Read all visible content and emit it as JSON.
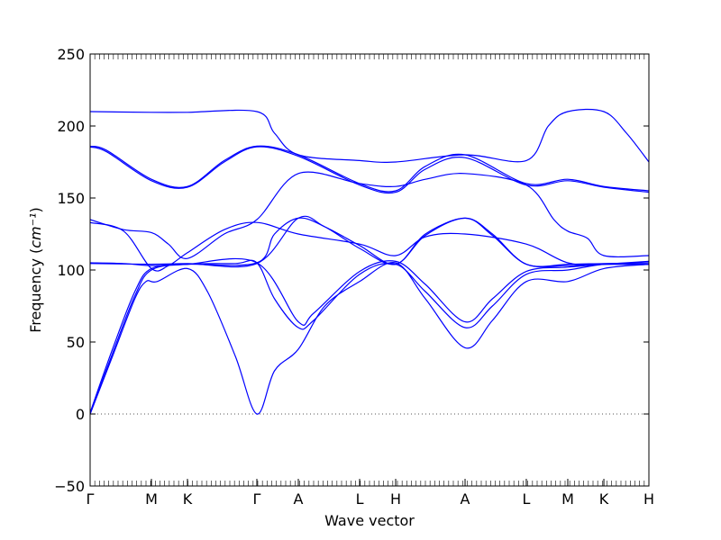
{
  "chart_data": {
    "type": "line",
    "title": "",
    "xlabel": "Wave vector",
    "ylabel": "Frequency",
    "ylabel_unit": "cm⁻¹",
    "ylim": [
      -50,
      250
    ],
    "yticks": [
      -50,
      0,
      50,
      100,
      150,
      200,
      250
    ],
    "xlim": [
      0,
      1
    ],
    "line_color": "#0000ff",
    "zero_line": {
      "y": 0,
      "style": "dotted",
      "color": "#555555"
    },
    "high_symmetry_points": [
      {
        "label": "Γ",
        "x": 0.0
      },
      {
        "label": "M",
        "x": 0.1097
      },
      {
        "label": "K",
        "x": 0.1742
      },
      {
        "label": "Γ",
        "x": 0.2984
      },
      {
        "label": "A",
        "x": 0.3726
      },
      {
        "label": "L",
        "x": 0.4823
      },
      {
        "label": "H",
        "x": 0.5468
      },
      {
        "label": "A",
        "x": 0.671
      },
      {
        "label": "L",
        "x": 0.7806
      },
      {
        "label": "M",
        "x": 0.8548
      },
      {
        "label": "K",
        "x": 0.9194
      },
      {
        "label": "H",
        "x": 1.0
      }
    ],
    "segment_names": [
      "Γ-M",
      "M-K",
      "K-Γ",
      "Γ-A",
      "A-L",
      "L-H",
      "H-A",
      "A-L",
      "L-M",
      "M-K",
      "K-H"
    ],
    "series": [
      {
        "values": [
          [
            0,
            0
          ],
          [
            0.04,
            40
          ],
          [
            0.08,
            80
          ],
          [
            0.1,
            92
          ],
          [
            0.12,
            92
          ],
          [
            0.1742,
            101
          ],
          [
            0.21,
            85
          ],
          [
            0.26,
            40
          ],
          [
            0.2984,
            0
          ],
          [
            0.33,
            30
          ],
          [
            0.3726,
            45
          ],
          [
            0.42,
            75
          ],
          [
            0.4823,
            92
          ],
          [
            0.5468,
            105
          ],
          [
            0.6,
            80
          ],
          [
            0.671,
            46
          ],
          [
            0.72,
            65
          ],
          [
            0.7806,
            92
          ],
          [
            0.8548,
            92
          ],
          [
            0.9194,
            101
          ],
          [
            1.0,
            104
          ]
        ]
      },
      {
        "values": [
          [
            0,
            0
          ],
          [
            0.04,
            42
          ],
          [
            0.08,
            82
          ],
          [
            0.1097,
            100
          ],
          [
            0.1742,
            104
          ],
          [
            0.26,
            104.5
          ],
          [
            0.2984,
            105
          ],
          [
            0.33,
            80
          ],
          [
            0.3726,
            60
          ],
          [
            0.4,
            65
          ],
          [
            0.4823,
            97
          ],
          [
            0.5468,
            104
          ],
          [
            0.6,
            85
          ],
          [
            0.671,
            60
          ],
          [
            0.72,
            75
          ],
          [
            0.7806,
            97
          ],
          [
            0.8548,
            100
          ],
          [
            0.9194,
            104
          ],
          [
            1.0,
            105
          ]
        ]
      },
      {
        "values": [
          [
            0,
            1
          ],
          [
            0.04,
            45
          ],
          [
            0.08,
            85
          ],
          [
            0.1097,
            101
          ],
          [
            0.1742,
            104
          ],
          [
            0.2984,
            105
          ],
          [
            0.3726,
            64
          ],
          [
            0.4,
            70
          ],
          [
            0.4823,
            99
          ],
          [
            0.5468,
            106
          ],
          [
            0.6,
            90
          ],
          [
            0.671,
            64
          ],
          [
            0.72,
            80
          ],
          [
            0.7806,
            99
          ],
          [
            0.8548,
            102
          ],
          [
            0.9194,
            104
          ],
          [
            1.0,
            106
          ]
        ]
      },
      {
        "values": [
          [
            0,
            105
          ],
          [
            0.06,
            104.5
          ],
          [
            0.1097,
            103
          ],
          [
            0.1742,
            104
          ],
          [
            0.2984,
            105
          ],
          [
            0.33,
            125
          ],
          [
            0.3726,
            136
          ],
          [
            0.42,
            130
          ],
          [
            0.4823,
            115
          ],
          [
            0.5468,
            104
          ],
          [
            0.6,
            124
          ],
          [
            0.671,
            136
          ],
          [
            0.72,
            124
          ],
          [
            0.7806,
            104
          ],
          [
            0.8548,
            103
          ],
          [
            0.9194,
            104
          ],
          [
            1.0,
            104
          ]
        ]
      },
      {
        "values": [
          [
            0,
            104.5
          ],
          [
            0.1097,
            104
          ],
          [
            0.1742,
            104.5
          ],
          [
            0.2984,
            104.5
          ],
          [
            0.3726,
            136
          ],
          [
            0.42,
            130
          ],
          [
            0.4823,
            117
          ],
          [
            0.5468,
            104
          ],
          [
            0.6,
            125
          ],
          [
            0.671,
            136
          ],
          [
            0.72,
            125
          ],
          [
            0.7806,
            104
          ],
          [
            0.8548,
            104
          ],
          [
            0.9194,
            104.5
          ],
          [
            1.0,
            105
          ]
        ]
      },
      {
        "values": [
          [
            0,
            133
          ],
          [
            0.06,
            127
          ],
          [
            0.1097,
            101
          ],
          [
            0.14,
            103
          ],
          [
            0.1742,
            112
          ],
          [
            0.24,
            128
          ],
          [
            0.2984,
            133
          ],
          [
            0.3726,
            125
          ],
          [
            0.4823,
            118
          ],
          [
            0.5468,
            110
          ],
          [
            0.6,
            123
          ],
          [
            0.671,
            125
          ],
          [
            0.7806,
            118
          ],
          [
            0.8548,
            105
          ],
          [
            0.9194,
            104
          ],
          [
            1.0,
            104
          ]
        ]
      },
      {
        "values": [
          [
            0,
            135
          ],
          [
            0.06,
            128
          ],
          [
            0.1097,
            126
          ],
          [
            0.14,
            118
          ],
          [
            0.1742,
            108
          ],
          [
            0.24,
            125
          ],
          [
            0.2984,
            135
          ],
          [
            0.3726,
            167
          ],
          [
            0.4823,
            160
          ],
          [
            0.5468,
            158
          ],
          [
            0.6,
            163
          ],
          [
            0.671,
            167
          ],
          [
            0.7806,
            159
          ],
          [
            0.83,
            135
          ],
          [
            0.8548,
            127
          ],
          [
            0.89,
            122
          ],
          [
            0.9194,
            110
          ],
          [
            1.0,
            110
          ]
        ]
      },
      {
        "values": [
          [
            0,
            186
          ],
          [
            0.03,
            183
          ],
          [
            0.1097,
            163
          ],
          [
            0.1742,
            158
          ],
          [
            0.24,
            176
          ],
          [
            0.2984,
            186
          ],
          [
            0.3726,
            180
          ],
          [
            0.4823,
            160
          ],
          [
            0.5468,
            155
          ],
          [
            0.6,
            172
          ],
          [
            0.671,
            180
          ],
          [
            0.7806,
            160
          ],
          [
            0.8548,
            163
          ],
          [
            0.9194,
            158
          ],
          [
            1.0,
            155
          ]
        ]
      },
      {
        "values": [
          [
            0,
            185.5
          ],
          [
            0.03,
            182
          ],
          [
            0.1097,
            162
          ],
          [
            0.1742,
            157.5
          ],
          [
            0.24,
            175
          ],
          [
            0.2984,
            185.5
          ],
          [
            0.3726,
            179
          ],
          [
            0.4823,
            159
          ],
          [
            0.5468,
            154
          ],
          [
            0.6,
            170
          ],
          [
            0.671,
            178
          ],
          [
            0.7806,
            159
          ],
          [
            0.8548,
            162
          ],
          [
            0.9194,
            157.5
          ],
          [
            1.0,
            154
          ]
        ]
      },
      {
        "values": [
          [
            0,
            210
          ],
          [
            0.1097,
            209.5
          ],
          [
            0.1742,
            209.5
          ],
          [
            0.2984,
            210
          ],
          [
            0.33,
            195
          ],
          [
            0.3726,
            180
          ],
          [
            0.4823,
            176
          ],
          [
            0.5468,
            175
          ],
          [
            0.671,
            180
          ],
          [
            0.7806,
            176
          ],
          [
            0.82,
            200
          ],
          [
            0.8548,
            210
          ],
          [
            0.9194,
            210
          ],
          [
            0.96,
            195
          ],
          [
            1.0,
            175
          ]
        ]
      }
    ]
  }
}
